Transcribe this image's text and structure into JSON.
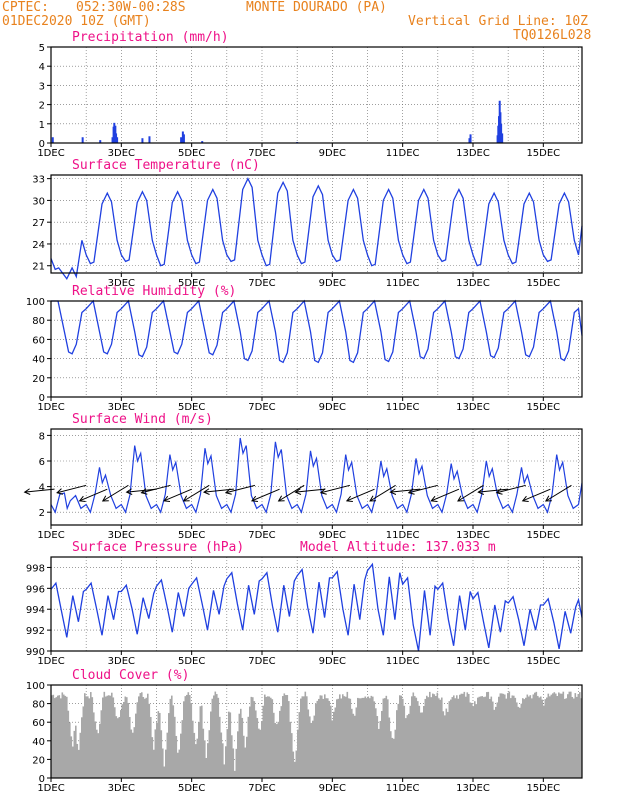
{
  "header": {
    "org": "CPTEC:",
    "coords": "052:30W-00:28S",
    "station": "MONTE DOURADO (PA)",
    "run": "01DEC2020 10Z (GMT)",
    "grid_line": "Vertical Grid Line: 10Z",
    "model": "TQ0126L028"
  },
  "colors": {
    "header": "#e8821e",
    "title": "#ee1188",
    "series": "#2040e0",
    "cloud": "#a8a8a8",
    "grid": "#666666"
  },
  "chart_data": [
    {
      "type": "bar",
      "title": "Precipitation (mm/h)",
      "x_ticks": [
        "1DEC",
        "3DEC",
        "5DEC",
        "7DEC",
        "9DEC",
        "11DEC",
        "13DEC",
        "15DEC"
      ],
      "x_range_days": [
        1,
        16.1
      ],
      "ylim": [
        0,
        5
      ],
      "y_ticks": [
        "0",
        "1",
        "2",
        "3",
        "4",
        "5"
      ],
      "bars": [
        {
          "x": 1.05,
          "y": 0.3
        },
        {
          "x": 1.9,
          "y": 0.3
        },
        {
          "x": 2.4,
          "y": 0.15
        },
        {
          "x": 2.75,
          "y": 0.3
        },
        {
          "x": 2.78,
          "y": 0.85
        },
        {
          "x": 2.8,
          "y": 1.05
        },
        {
          "x": 2.83,
          "y": 0.9
        },
        {
          "x": 2.85,
          "y": 0.5
        },
        {
          "x": 2.88,
          "y": 0.3
        },
        {
          "x": 3.6,
          "y": 0.25
        },
        {
          "x": 3.8,
          "y": 0.35
        },
        {
          "x": 4.7,
          "y": 0.3
        },
        {
          "x": 4.75,
          "y": 0.6
        },
        {
          "x": 4.78,
          "y": 0.45
        },
        {
          "x": 5.3,
          "y": 0.1
        },
        {
          "x": 8.0,
          "y": 0.05
        },
        {
          "x": 12.9,
          "y": 0.25
        },
        {
          "x": 12.93,
          "y": 0.45
        },
        {
          "x": 13.7,
          "y": 0.4
        },
        {
          "x": 13.72,
          "y": 0.9
        },
        {
          "x": 13.74,
          "y": 1.4
        },
        {
          "x": 13.76,
          "y": 2.2
        },
        {
          "x": 13.78,
          "y": 1.6
        },
        {
          "x": 13.8,
          "y": 1.0
        },
        {
          "x": 13.83,
          "y": 0.5
        }
      ]
    },
    {
      "type": "line",
      "title": "Surface Temperature (nC)",
      "x_ticks": [
        "3DEC",
        "5DEC",
        "7DEC",
        "9DEC",
        "11DEC",
        "13DEC",
        "15DEC"
      ],
      "ylim": [
        20,
        33.5
      ],
      "y_ticks": [
        "21",
        "24",
        "27",
        "30",
        "33"
      ],
      "daily_min": 21,
      "daily_max": [
        20.7,
        31,
        31.2,
        31.2,
        31.5,
        33,
        32.5,
        32,
        31.5,
        31.5,
        31.5,
        31.5,
        31,
        31,
        31,
        31
      ]
    },
    {
      "type": "line",
      "title": "Relative Humidity (%)",
      "x_ticks": [
        "1DEC",
        "3DEC",
        "5DEC",
        "7DEC",
        "9DEC",
        "11DEC",
        "13DEC",
        "15DEC"
      ],
      "ylim": [
        0,
        100
      ],
      "y_ticks": [
        "0",
        "20",
        "40",
        "60",
        "80",
        "100"
      ],
      "daily_min": [
        45,
        45,
        42,
        45,
        44,
        38,
        36,
        36,
        36,
        37,
        40,
        40,
        41,
        42,
        38,
        38
      ]
    },
    {
      "type": "line",
      "title": "Surface Wind (m/s)",
      "x_ticks": [
        "1DEC",
        "3DEC",
        "5DEC",
        "7DEC",
        "9DEC",
        "11DEC",
        "13DEC",
        "15DEC"
      ],
      "ylim": [
        1,
        8.5
      ],
      "y_ticks": [
        "2",
        "4",
        "6",
        "8"
      ],
      "daily_peak": [
        3.5,
        5.5,
        7.2,
        6.5,
        7.0,
        7.8,
        7.5,
        6.8,
        6.5,
        6.0,
        6.2,
        5.8,
        6.0,
        5.5,
        6.5,
        6.7
      ],
      "arrows_at_days": [
        1.1,
        2.0,
        2.6,
        3.2,
        4.0,
        4.4,
        5.0,
        5.5,
        6.2,
        6.8,
        7.5,
        8.2,
        8.8,
        9.5,
        10.2,
        10.8,
        11.5,
        12.0,
        12.6,
        13.3,
        14.0,
        14.5,
        15.2,
        15.8
      ]
    },
    {
      "type": "line",
      "title": "Surface Pressure (hPa)",
      "annotation": "Model Altitude: 137.033 m",
      "x_ticks": [
        "1DEC",
        "3DEC",
        "5DEC",
        "7DEC",
        "9DEC",
        "11DEC",
        "13DEC",
        "15DEC"
      ],
      "ylim": [
        990,
        999
      ],
      "y_ticks": [
        "990",
        "992",
        "994",
        "996",
        "998"
      ],
      "daily_max": [
        996.5,
        996.5,
        996.3,
        996.8,
        997.0,
        997.5,
        997.5,
        997.8,
        997.6,
        998.3,
        997.0,
        996.5,
        995.6,
        995.2,
        995.0,
        995.5
      ],
      "daily_min": [
        991.3,
        991.5,
        991.6,
        991.8,
        992.0,
        992.0,
        991.8,
        991.7,
        991.5,
        991.5,
        990.0,
        990.5,
        990.3,
        990.5,
        990.2,
        991.0
      ]
    },
    {
      "type": "area",
      "title": "Cloud Cover (%)",
      "x_ticks": [
        "1DEC",
        "3DEC",
        "5DEC",
        "7DEC",
        "9DEC",
        "11DEC",
        "13DEC",
        "15DEC"
      ],
      "ylim": [
        0,
        100
      ],
      "y_ticks": [
        "0",
        "20",
        "40",
        "60",
        "80",
        "100"
      ],
      "baseline": 88,
      "dips": [
        {
          "x": 1.6,
          "y": 28
        },
        {
          "x": 1.75,
          "y": 22
        },
        {
          "x": 2.3,
          "y": 40
        },
        {
          "x": 2.9,
          "y": 52
        },
        {
          "x": 3.3,
          "y": 42
        },
        {
          "x": 3.9,
          "y": 30
        },
        {
          "x": 4.2,
          "y": 12
        },
        {
          "x": 4.6,
          "y": 20
        },
        {
          "x": 5.1,
          "y": 25
        },
        {
          "x": 5.4,
          "y": 15
        },
        {
          "x": 5.9,
          "y": 12
        },
        {
          "x": 6.2,
          "y": 5
        },
        {
          "x": 6.5,
          "y": 28
        },
        {
          "x": 6.9,
          "y": 40
        },
        {
          "x": 7.4,
          "y": 48
        },
        {
          "x": 7.9,
          "y": 4
        },
        {
          "x": 8.4,
          "y": 52
        },
        {
          "x": 9.0,
          "y": 58
        },
        {
          "x": 9.6,
          "y": 62
        },
        {
          "x": 10.3,
          "y": 50
        },
        {
          "x": 10.7,
          "y": 30
        },
        {
          "x": 11.1,
          "y": 58
        },
        {
          "x": 11.5,
          "y": 65
        },
        {
          "x": 12.2,
          "y": 62
        },
        {
          "x": 13.0,
          "y": 70
        },
        {
          "x": 13.6,
          "y": 68
        },
        {
          "x": 14.3,
          "y": 72
        },
        {
          "x": 15.0,
          "y": 76
        }
      ]
    }
  ]
}
